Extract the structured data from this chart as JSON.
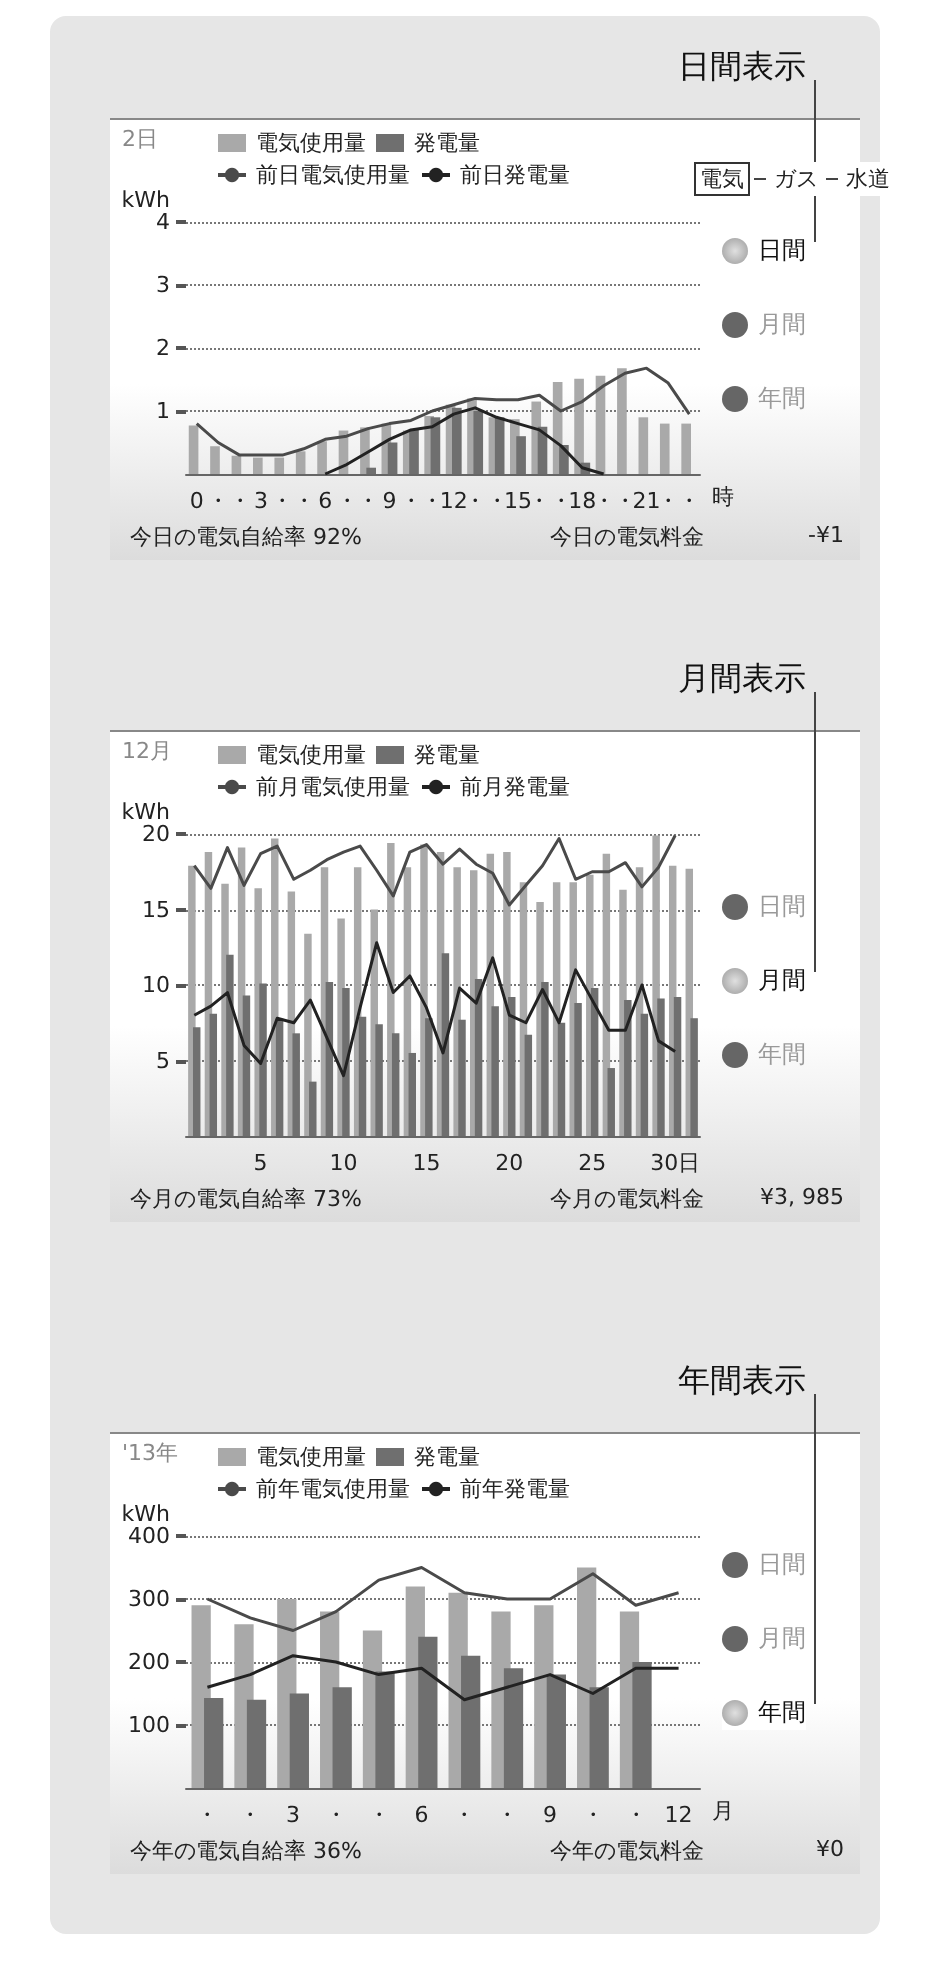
{
  "chart_data": [
    {
      "type": "bar",
      "title": "日間表示",
      "subtitle": "2日",
      "ylabel": "kWh",
      "xlabel": "時",
      "categories": [
        "0",
        "・",
        "・",
        "3",
        "・",
        "・",
        "6",
        "・",
        "・",
        "9",
        "・",
        "・",
        "12",
        "・",
        "・",
        "15",
        "・",
        "・",
        "18",
        "・",
        "・",
        "21",
        "・",
        "・"
      ],
      "ylim": [
        0,
        4
      ],
      "yticks": [
        1,
        2,
        3,
        4
      ],
      "grid": "y",
      "legend": "top",
      "series": [
        {
          "name": "電気使用量",
          "color": "#a9a9a9",
          "values": [
            0.77,
            0.44,
            0.29,
            0.26,
            0.26,
            0.36,
            0.52,
            0.69,
            0.74,
            0.8,
            0.69,
            0.92,
            1.1,
            1.2,
            0.9,
            0.87,
            1.15,
            1.46,
            1.51,
            1.56,
            1.68,
            0.9,
            0.8,
            0.8
          ]
        },
        {
          "name": "発電量",
          "color": "#6f6f6f",
          "values": [
            null,
            null,
            null,
            null,
            null,
            null,
            null,
            null,
            0.1,
            0.5,
            0.7,
            0.9,
            1.05,
            1.0,
            0.9,
            0.6,
            0.75,
            0.46,
            0.18,
            null,
            null,
            null,
            null,
            null
          ]
        },
        {
          "name": "前日電気使用量",
          "type": "line",
          "color": "#4a4a4a",
          "values": [
            0.8,
            0.5,
            0.3,
            0.3,
            0.3,
            0.4,
            0.55,
            0.6,
            0.72,
            0.8,
            0.85,
            1.0,
            1.1,
            1.2,
            1.18,
            1.18,
            1.25,
            1.0,
            1.15,
            1.4,
            1.6,
            1.68,
            1.45,
            0.95
          ]
        },
        {
          "name": "前日発電量",
          "type": "line",
          "color": "#222222",
          "values": [
            null,
            null,
            null,
            null,
            null,
            null,
            0,
            0.15,
            0.35,
            0.55,
            0.7,
            0.75,
            0.95,
            1.05,
            0.9,
            0.8,
            0.7,
            0.45,
            0.1,
            0,
            null,
            null,
            null,
            null
          ]
        }
      ],
      "annotations": [
        "日間",
        "月間",
        "年間",
        "今日の電気自給率 92%",
        "今日の電気料金",
        "-¥1",
        "電気",
        "ガス",
        "水道"
      ]
    },
    {
      "type": "bar",
      "title": "月間表示",
      "subtitle": "12月",
      "ylabel": "kWh",
      "categories": [
        null,
        null,
        null,
        null,
        "5",
        null,
        null,
        null,
        null,
        "10",
        null,
        null,
        null,
        null,
        "15",
        null,
        null,
        null,
        null,
        "20",
        null,
        null,
        null,
        null,
        "25",
        null,
        null,
        null,
        null,
        "30日",
        null
      ],
      "ylim": [
        0,
        20
      ],
      "yticks": [
        5,
        10,
        15,
        20
      ],
      "grid": "y",
      "legend": "top",
      "series": [
        {
          "name": "電気使用量",
          "color": "#a9a9a9",
          "values": [
            17.9,
            18.8,
            16.7,
            19.1,
            16.4,
            19.7,
            16.2,
            13.4,
            17.8,
            14.4,
            17.8,
            15.0,
            19.4,
            17.8,
            19.3,
            18.8,
            17.8,
            17.6,
            18.7,
            18.8,
            16.8,
            15.5,
            16.8,
            16.8,
            17.3,
            18.7,
            16.3,
            17.8,
            19.9,
            17.9,
            17.7
          ]
        },
        {
          "name": "発電量",
          "color": "#6f6f6f",
          "values": [
            7.2,
            8.1,
            12.0,
            9.3,
            10.1,
            7.7,
            6.8,
            3.6,
            10.2,
            9.8,
            7.9,
            7.4,
            6.8,
            5.5,
            7.8,
            12.1,
            7.7,
            10.4,
            8.6,
            9.2,
            6.7,
            10.2,
            7.5,
            8.8,
            9.8,
            4.5,
            9.0,
            8.1,
            9.1,
            9.2,
            7.8
          ]
        },
        {
          "name": "前月電気使用量",
          "type": "line",
          "color": "#4a4a4a",
          "values": [
            17.9,
            16.4,
            19.1,
            16.6,
            18.7,
            19.2,
            17.0,
            17.6,
            18.3,
            18.8,
            19.2,
            17.6,
            15.9,
            18.8,
            19.3,
            18.0,
            19.0,
            18.0,
            17.4,
            15.3,
            16.6,
            17.9,
            19.7,
            17.0,
            17.5,
            17.5,
            18.1,
            16.5,
            17.8,
            19.9,
            null
          ]
        },
        {
          "name": "前月発電量",
          "type": "line",
          "color": "#222222",
          "values": [
            8.0,
            8.6,
            9.5,
            6.0,
            4.8,
            7.8,
            7.5,
            9.0,
            6.5,
            4.0,
            8.5,
            12.8,
            9.5,
            10.6,
            8.5,
            5.5,
            9.8,
            8.8,
            11.8,
            8.0,
            7.5,
            9.7,
            7.5,
            11.0,
            9.0,
            7.0,
            7.0,
            10.0,
            6.3,
            5.6,
            null
          ]
        }
      ],
      "annotations": [
        "日間",
        "月間",
        "年間",
        "今月の電気自給率 73%",
        "今月の電気料金",
        "¥3, 985"
      ]
    },
    {
      "type": "bar",
      "title": "年間表示",
      "subtitle": "'13年",
      "ylabel": "kWh",
      "xlabel": "月",
      "categories": [
        "・",
        "・",
        "3",
        "・",
        "・",
        "6",
        "・",
        "・",
        "9",
        "・",
        "・",
        "12"
      ],
      "ylim": [
        0,
        400
      ],
      "yticks": [
        100,
        200,
        300,
        400
      ],
      "grid": "y",
      "legend": "top",
      "series": [
        {
          "name": "電気使用量",
          "color": "#a9a9a9",
          "values": [
            290,
            260,
            300,
            280,
            250,
            320,
            310,
            280,
            290,
            350,
            280,
            null
          ]
        },
        {
          "name": "発電量",
          "color": "#6f6f6f",
          "values": [
            143,
            140,
            150,
            160,
            185,
            240,
            210,
            190,
            180,
            160,
            200,
            null
          ]
        },
        {
          "name": "前年電気使用量",
          "type": "line",
          "color": "#4a4a4a",
          "values": [
            300,
            270,
            250,
            280,
            330,
            350,
            310,
            300,
            300,
            340,
            290,
            310
          ]
        },
        {
          "name": "前年発電量",
          "type": "line",
          "color": "#222222",
          "values": [
            160,
            180,
            210,
            200,
            180,
            190,
            140,
            160,
            180,
            150,
            190,
            190
          ]
        }
      ],
      "annotations": [
        "日間",
        "月間",
        "年間",
        "今年の電気自給率 36%",
        "今年の電気料金",
        "¥0"
      ]
    }
  ]
}
